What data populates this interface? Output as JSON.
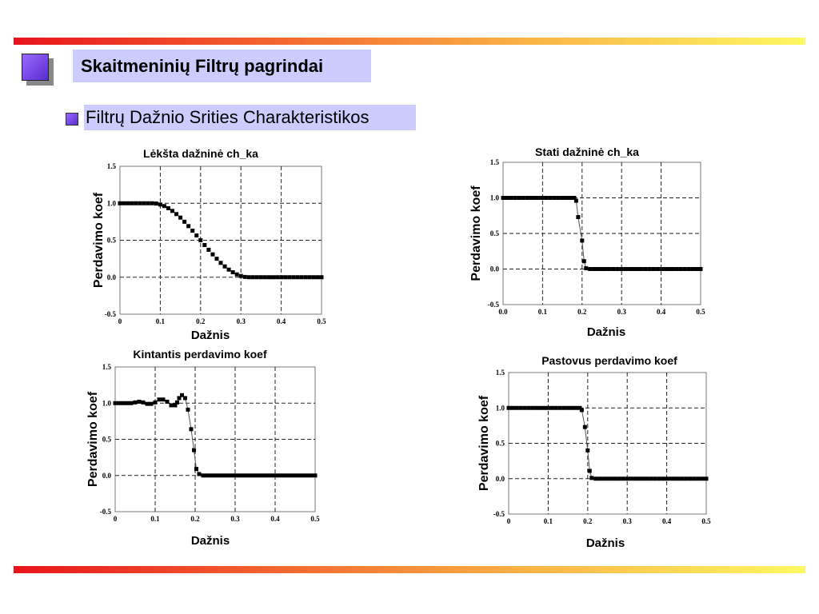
{
  "slide": {
    "title": "Skaitmeninių Filtrų pagrindai",
    "subtitle": "Filtrų Dažnio Srities Charakteristikos"
  },
  "chart_data": [
    {
      "type": "scatter",
      "title": "Lėkšta dažninė ch_ka",
      "xlabel": "Dažnis",
      "ylabel": "Perdavimo  koef",
      "xlim": [
        0,
        0.5
      ],
      "ylim": [
        -0.5,
        1.5
      ],
      "xticks": [
        "0",
        "0.1",
        "0.2",
        "0.3",
        "0.4",
        "0.5"
      ],
      "yticks": [
        "-0.5",
        "0.0",
        "0.5",
        "1.0",
        "1.5"
      ],
      "grid": true,
      "connect": false,
      "x": [
        0,
        0.01,
        0.02,
        0.03,
        0.04,
        0.05,
        0.06,
        0.07,
        0.08,
        0.09,
        0.1,
        0.11,
        0.12,
        0.13,
        0.14,
        0.15,
        0.16,
        0.17,
        0.18,
        0.19,
        0.2,
        0.21,
        0.22,
        0.23,
        0.24,
        0.25,
        0.26,
        0.27,
        0.28,
        0.29,
        0.3,
        0.31,
        0.32,
        0.33,
        0.34,
        0.35,
        0.36,
        0.37,
        0.38,
        0.39,
        0.4,
        0.41,
        0.42,
        0.43,
        0.44,
        0.45,
        0.46,
        0.47,
        0.48,
        0.49,
        0.5
      ],
      "y": [
        1,
        1,
        1,
        1,
        1,
        1,
        1,
        1,
        1,
        0.996,
        0.983,
        0.962,
        0.933,
        0.897,
        0.854,
        0.806,
        0.75,
        0.691,
        0.629,
        0.565,
        0.5,
        0.435,
        0.371,
        0.309,
        0.25,
        0.194,
        0.146,
        0.103,
        0.067,
        0.038,
        0.017,
        0.004,
        0,
        0,
        0,
        0,
        0,
        0,
        0,
        0,
        0,
        0,
        0,
        0,
        0,
        0,
        0,
        0,
        0,
        0,
        0
      ]
    },
    {
      "type": "line",
      "title": "Stati dažninė ch_ka",
      "xlabel": "Dažnis",
      "ylabel": "Perdavimo  koef",
      "xlim": [
        0,
        0.5
      ],
      "ylim": [
        -0.5,
        1.5
      ],
      "xticks": [
        "0.0",
        "0.1",
        "0.2",
        "0.3",
        "0.4",
        "0.5"
      ],
      "yticks": [
        "-0.5",
        "0.0",
        "0.5",
        "1.0",
        "1.5"
      ],
      "grid": true,
      "connect": true,
      "x": [
        0,
        0.01,
        0.02,
        0.03,
        0.04,
        0.05,
        0.06,
        0.07,
        0.08,
        0.09,
        0.1,
        0.11,
        0.12,
        0.13,
        0.14,
        0.15,
        0.16,
        0.17,
        0.18,
        0.185,
        0.19,
        0.2,
        0.205,
        0.21,
        0.22,
        0.23,
        0.24,
        0.25,
        0.26,
        0.27,
        0.28,
        0.29,
        0.3,
        0.31,
        0.32,
        0.33,
        0.34,
        0.35,
        0.36,
        0.37,
        0.38,
        0.39,
        0.4,
        0.41,
        0.42,
        0.43,
        0.44,
        0.45,
        0.46,
        0.47,
        0.48,
        0.49,
        0.5
      ],
      "y": [
        1,
        1,
        1,
        1,
        1,
        1,
        1,
        1,
        1,
        1,
        1,
        1,
        1,
        1,
        1,
        1,
        1,
        1,
        1,
        0.96,
        0.73,
        0.4,
        0.11,
        0.01,
        0,
        0,
        0,
        0,
        0,
        0,
        0,
        0,
        0,
        0,
        0,
        0,
        0,
        0,
        0,
        0,
        0,
        0,
        0,
        0,
        0,
        0,
        0,
        0,
        0,
        0,
        0,
        0,
        0
      ]
    },
    {
      "type": "line",
      "title": "Kintantis perdavimo koef",
      "xlabel": "Dažnis",
      "ylabel": "Perdavimo  koef",
      "xlim": [
        0,
        0.5
      ],
      "ylim": [
        -0.5,
        1.5
      ],
      "xticks": [
        "0",
        "0.1",
        "0.2",
        "0.3",
        "0.4",
        "0.5"
      ],
      "yticks": [
        "-0.5",
        "0.0",
        "0.5",
        "1.0",
        "1.5"
      ],
      "grid": true,
      "connect": true,
      "x": [
        0,
        0.01,
        0.02,
        0.03,
        0.04,
        0.05,
        0.06,
        0.07,
        0.08,
        0.09,
        0.1,
        0.11,
        0.12,
        0.13,
        0.14,
        0.15,
        0.155,
        0.16,
        0.167,
        0.175,
        0.182,
        0.19,
        0.197,
        0.203,
        0.21,
        0.22,
        0.23,
        0.24,
        0.25,
        0.26,
        0.27,
        0.28,
        0.29,
        0.3,
        0.31,
        0.32,
        0.33,
        0.34,
        0.35,
        0.36,
        0.37,
        0.38,
        0.39,
        0.4,
        0.41,
        0.42,
        0.43,
        0.44,
        0.45,
        0.46,
        0.47,
        0.48,
        0.49,
        0.5
      ],
      "y": [
        1,
        1,
        1,
        1,
        1,
        1.01,
        1.02,
        1.01,
        0.99,
        0.99,
        1.01,
        1.05,
        1.05,
        1.02,
        0.97,
        0.97,
        1.01,
        1.07,
        1.11,
        1.07,
        0.91,
        0.64,
        0.35,
        0.09,
        0.02,
        0,
        0,
        0,
        0,
        0,
        0,
        0,
        0,
        0,
        0,
        0,
        0,
        0,
        0,
        0,
        0,
        0,
        0,
        0,
        0,
        0,
        0,
        0,
        0,
        0,
        0,
        0,
        0,
        0
      ]
    },
    {
      "type": "line",
      "title": "Pastovus perdavimo koef",
      "xlabel": "Dažnis",
      "ylabel": "Perdavimo  koef",
      "xlim": [
        0,
        0.5
      ],
      "ylim": [
        -0.5,
        1.5
      ],
      "xticks": [
        "0",
        "0.1",
        "0.2",
        "0.3",
        "0.4",
        "0.5"
      ],
      "yticks": [
        "-0.5",
        "0.0",
        "0.5",
        "1.0",
        "1.5"
      ],
      "grid": true,
      "connect": true,
      "x": [
        0,
        0.01,
        0.02,
        0.03,
        0.04,
        0.05,
        0.06,
        0.07,
        0.08,
        0.09,
        0.1,
        0.11,
        0.12,
        0.13,
        0.14,
        0.15,
        0.16,
        0.17,
        0.18,
        0.185,
        0.193,
        0.2,
        0.205,
        0.21,
        0.22,
        0.23,
        0.24,
        0.25,
        0.26,
        0.27,
        0.28,
        0.29,
        0.3,
        0.31,
        0.32,
        0.33,
        0.34,
        0.35,
        0.36,
        0.37,
        0.38,
        0.39,
        0.4,
        0.41,
        0.42,
        0.43,
        0.44,
        0.45,
        0.46,
        0.47,
        0.48,
        0.49,
        0.5
      ],
      "y": [
        1,
        1,
        1,
        1,
        1,
        1,
        1,
        1,
        1,
        1,
        1,
        1,
        1,
        1,
        1,
        1,
        1,
        1,
        1,
        0.97,
        0.73,
        0.4,
        0.11,
        0.01,
        0,
        0,
        0,
        0,
        0,
        0,
        0,
        0,
        0,
        0,
        0,
        0,
        0,
        0,
        0,
        0,
        0,
        0,
        0,
        0,
        0,
        0,
        0,
        0,
        0,
        0,
        0,
        0,
        0
      ]
    }
  ]
}
